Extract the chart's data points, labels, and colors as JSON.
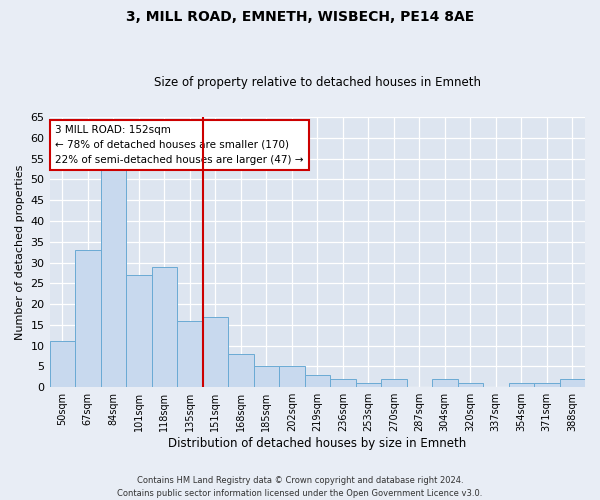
{
  "title": "3, MILL ROAD, EMNETH, WISBECH, PE14 8AE",
  "subtitle": "Size of property relative to detached houses in Emneth",
  "xlabel": "Distribution of detached houses by size in Emneth",
  "ylabel": "Number of detached properties",
  "categories": [
    "50sqm",
    "67sqm",
    "84sqm",
    "101sqm",
    "118sqm",
    "135sqm",
    "151sqm",
    "168sqm",
    "185sqm",
    "202sqm",
    "219sqm",
    "236sqm",
    "253sqm",
    "270sqm",
    "287sqm",
    "304sqm",
    "320sqm",
    "337sqm",
    "354sqm",
    "371sqm",
    "388sqm"
  ],
  "values": [
    11,
    33,
    54,
    27,
    29,
    16,
    17,
    8,
    5,
    5,
    3,
    2,
    1,
    2,
    0,
    2,
    1,
    0,
    1,
    1,
    2
  ],
  "bar_color": "#c8d9ee",
  "bar_edge_color": "#6aaad4",
  "vline_color": "#cc0000",
  "annotation_line1": "3 MILL ROAD: 152sqm",
  "annotation_line2": "← 78% of detached houses are smaller (170)",
  "annotation_line3": "22% of semi-detached houses are larger (47) →",
  "annotation_box_color": "#cc0000",
  "ylim": [
    0,
    65
  ],
  "yticks": [
    0,
    5,
    10,
    15,
    20,
    25,
    30,
    35,
    40,
    45,
    50,
    55,
    60,
    65
  ],
  "background_color": "#e8edf5",
  "plot_bg_color": "#dde5f0",
  "grid_color": "#ffffff",
  "footer_line1": "Contains HM Land Registry data © Crown copyright and database right 2024.",
  "footer_line2": "Contains public sector information licensed under the Open Government Licence v3.0."
}
